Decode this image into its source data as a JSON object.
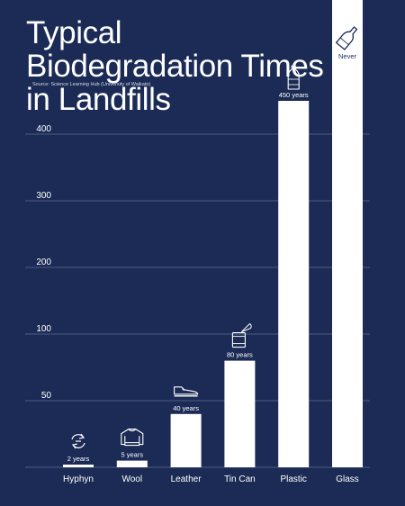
{
  "title": "Typical Biodegradation Times in Landfills",
  "source": "Source: Science Learning Hub (University of Waikato)",
  "colors": {
    "background": "#1b2b55",
    "bar": "#ffffff",
    "grid": "#5d6c92",
    "text": "#ffffff"
  },
  "chart_data": {
    "type": "bar",
    "title": "Typical Biodegradation Times in Landfills",
    "xlabel": "",
    "ylabel": "",
    "categories": [
      "Hyphyn",
      "Wool",
      "Leather",
      "Tin Can",
      "Plastic",
      "Glass"
    ],
    "values": [
      2,
      5,
      40,
      80,
      450,
      null
    ],
    "data_labels": [
      "2 years",
      "5 years",
      "40 years",
      "80 years",
      "450 years",
      "Never"
    ],
    "icons": [
      "recycle-icon",
      "sweater-icon",
      "shoe-icon",
      "tin-can-icon",
      "plastic-bottle-icon",
      "glass-bottle-icon"
    ],
    "y_ticks": [
      50,
      100,
      200,
      300,
      400
    ],
    "ylim": [
      0,
      500
    ],
    "grid": true,
    "legend": "none"
  }
}
